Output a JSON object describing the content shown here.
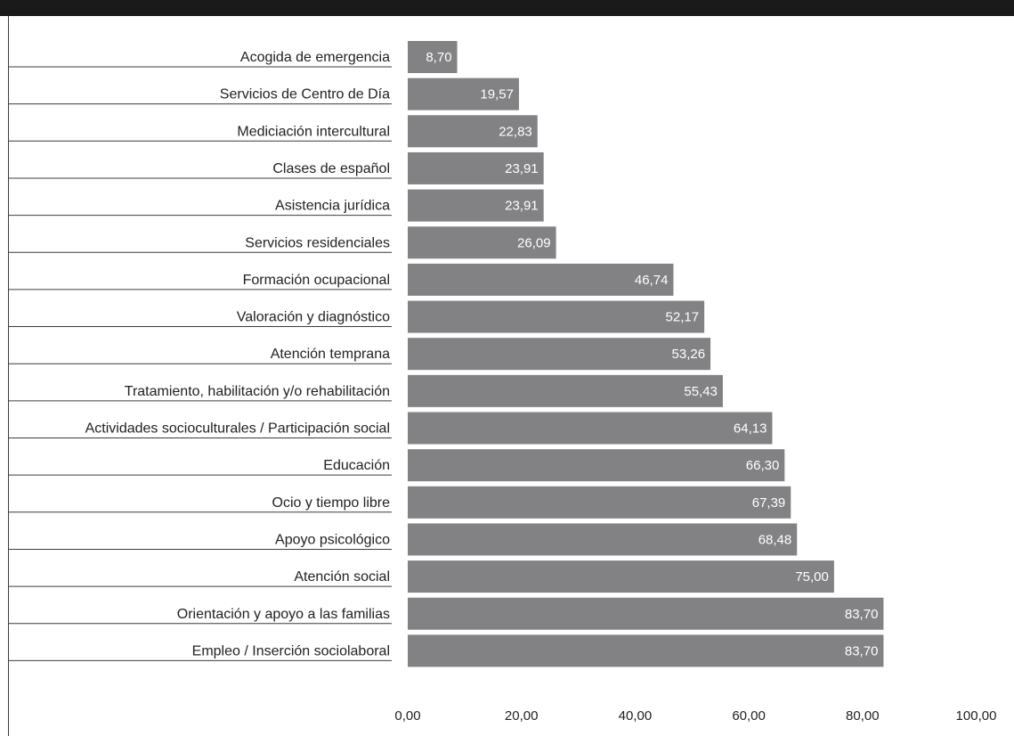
{
  "banner": {
    "text": ""
  },
  "chart_data": {
    "type": "bar",
    "orientation": "horizontal",
    "title": "",
    "xlabel": "",
    "ylabel": "",
    "xlim": [
      0,
      100
    ],
    "x_ticks": [
      "0,00",
      "20,00",
      "40,00",
      "60,00",
      "80,00",
      "100,00"
    ],
    "x_tick_values": [
      0,
      20,
      40,
      60,
      80,
      100
    ],
    "categories": [
      "Acogida de emergencia",
      "Servicios de Centro de Día",
      "Mediciación intercultural",
      "Clases de español",
      "Asistencia jurídica",
      "Servicios residenciales",
      "Formación ocupacional",
      "Valoración y diagnóstico",
      "Atención temprana",
      "Tratamiento, habilitación y/o rehabilitación",
      "Actividades socioculturales / Participación social",
      "Educación",
      "Ocio y tiempo libre",
      "Apoyo psicológico",
      "Atención social",
      "Orientación y apoyo a las familias",
      "Empleo / Inserción sociolaboral"
    ],
    "values": [
      8.7,
      19.57,
      22.83,
      23.91,
      23.91,
      26.09,
      46.74,
      52.17,
      53.26,
      55.43,
      64.13,
      66.3,
      67.39,
      68.48,
      75.0,
      83.7,
      83.7
    ],
    "value_labels": [
      "8,70",
      "19,57",
      "22,83",
      "23,91",
      "23,91",
      "26,09",
      "46,74",
      "52,17",
      "53,26",
      "55,43",
      "64,13",
      "66,30",
      "67,39",
      "68,48",
      "75,00",
      "83,70",
      "83,70"
    ],
    "grid": false,
    "legend": "none",
    "colors": {
      "bar": "#828285",
      "bar_label": "#ffffff",
      "text": "#222222",
      "line": "#3c3c3c",
      "banner": "#1a1a1a"
    }
  }
}
